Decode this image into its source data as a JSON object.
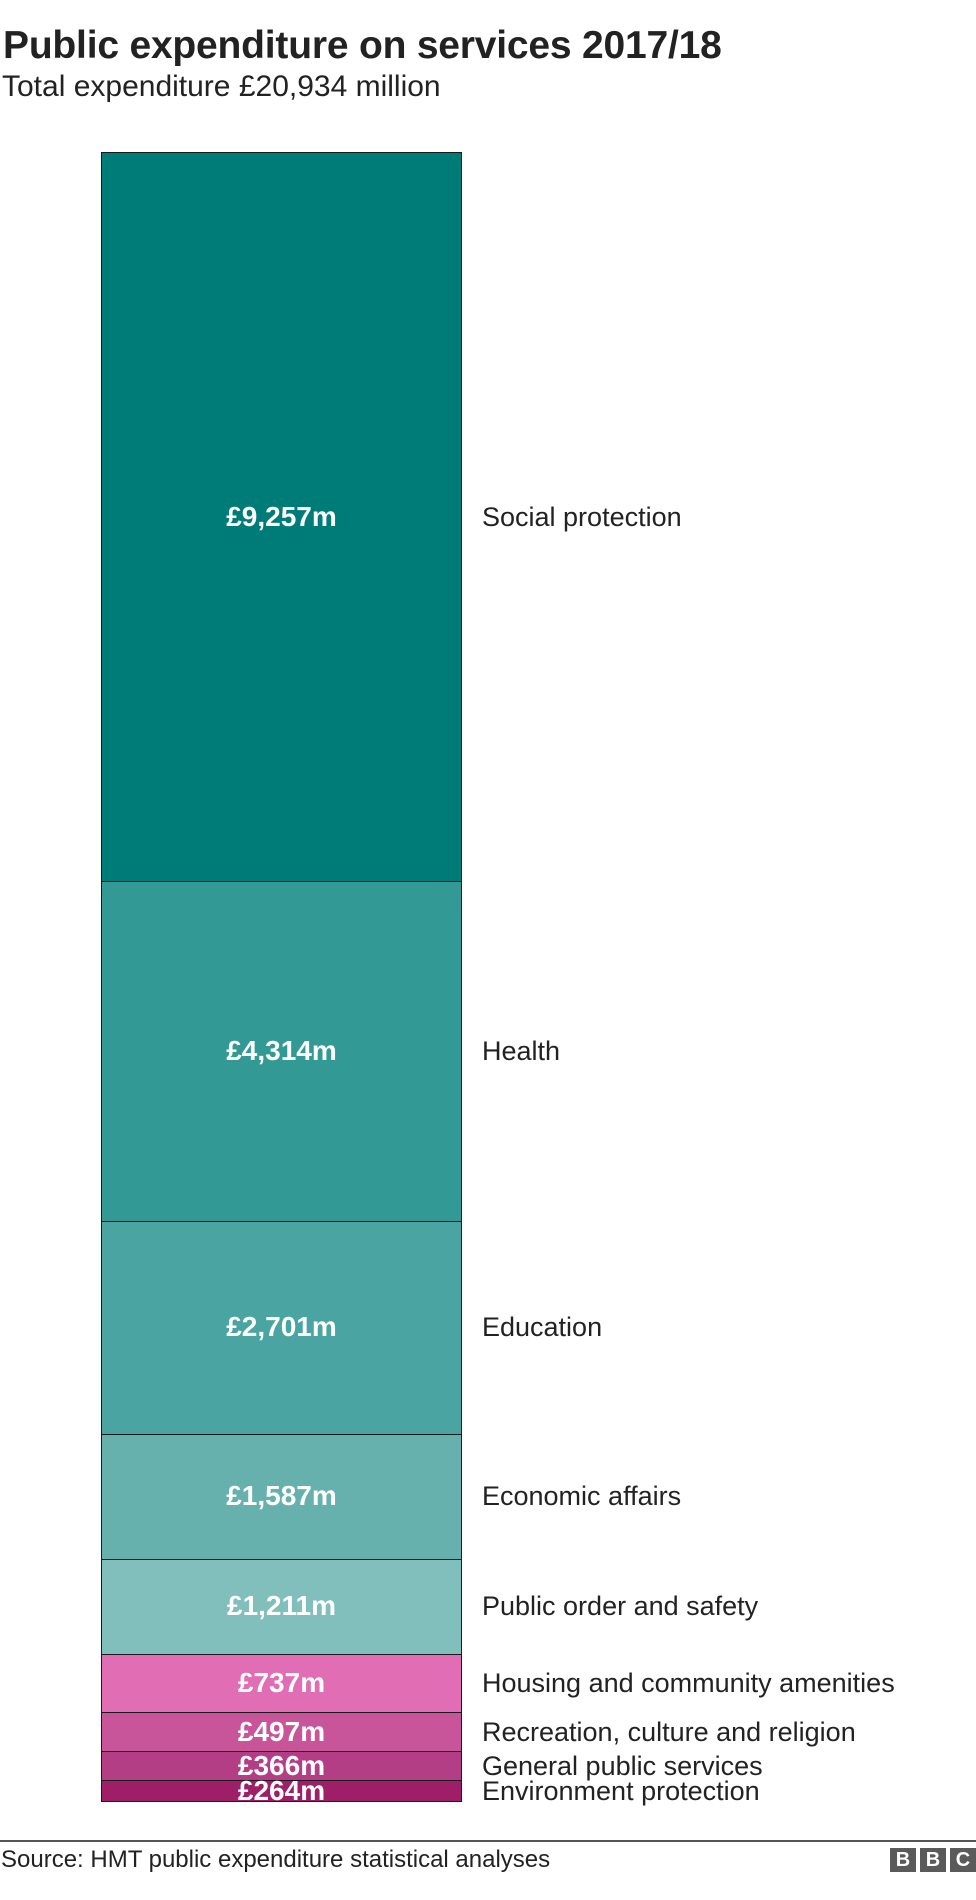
{
  "header": {
    "title": "Public expenditure on services 2017/18",
    "subtitle": "Total expenditure £20,934 million"
  },
  "footer": {
    "source": "Source: HMT public expenditure statistical analyses",
    "logo_letters": [
      "B",
      "B",
      "C"
    ]
  },
  "segments": [
    {
      "category": "Social protection",
      "value_label": "£9,257m",
      "value": 9257,
      "color": "#007c78"
    },
    {
      "category": "Health",
      "value_label": "£4,314m",
      "value": 4314,
      "color": "#339995"
    },
    {
      "category": "Education",
      "value_label": "£2,701m",
      "value": 2701,
      "color": "#4aa5a2"
    },
    {
      "category": "Economic affairs",
      "value_label": "£1,587m",
      "value": 1587,
      "color": "#66b1ae"
    },
    {
      "category": "Public order and safety",
      "value_label": "£1,211m",
      "value": 1211,
      "color": "#80bfbb"
    },
    {
      "category": "Housing and community amenities",
      "value_label": "£737m",
      "value": 737,
      "color": "#e16db5"
    },
    {
      "category": "Recreation, culture and religion",
      "value_label": "£497m",
      "value": 497,
      "color": "#c8549a"
    },
    {
      "category": "General public services",
      "value_label": "£366m",
      "value": 366,
      "color": "#b43e86"
    },
    {
      "category": "Environment protection",
      "value_label": "£264m",
      "value": 264,
      "color": "#9e1f68"
    }
  ],
  "chart_data": {
    "type": "bar",
    "subtype": "single stacked column",
    "title": "Public expenditure on services 2017/18",
    "subtitle": "Total expenditure £20,934 million",
    "xlabel": "",
    "ylabel": "",
    "units": "£ million",
    "categories": [
      "Social protection",
      "Health",
      "Education",
      "Economic affairs",
      "Public order and safety",
      "Housing and community amenities",
      "Recreation, culture and religion",
      "General public services",
      "Environment protection"
    ],
    "values": [
      9257,
      4314,
      2701,
      1587,
      1211,
      737,
      497,
      366,
      264
    ],
    "value_labels": [
      "£9,257m",
      "£4,314m",
      "£2,701m",
      "£1,587m",
      "£1,211m",
      "£737m",
      "£497m",
      "£366m",
      "£264m"
    ],
    "total": 20934,
    "colors": [
      "#007c78",
      "#339995",
      "#4aa5a2",
      "#66b1ae",
      "#80bfbb",
      "#e16db5",
      "#c8549a",
      "#b43e86",
      "#9e1f68"
    ],
    "legend": "direct labels to right of stack",
    "grid": false,
    "source": "Source: HMT public expenditure statistical analyses"
  }
}
